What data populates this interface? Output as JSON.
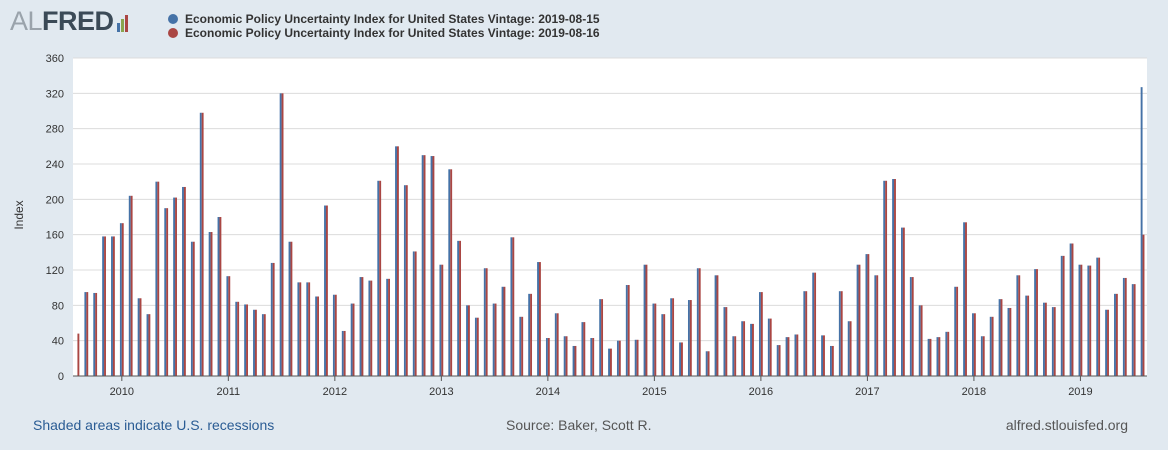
{
  "header": {
    "logo_prefix": "AL",
    "logo_main": "FRED",
    "logo_colors": [
      "#4572a7",
      "#89a54e",
      "#aa4643"
    ]
  },
  "legend": [
    {
      "label": "Economic Policy Uncertainty Index for United States Vintage: 2019-08-15",
      "color": "#4572a7"
    },
    {
      "label": "Economic Policy Uncertainty Index for United States Vintage: 2019-08-16",
      "color": "#aa4643"
    }
  ],
  "footer": {
    "recessions": "Shaded areas indicate U.S. recessions",
    "source": "Source: Baker, Scott R.",
    "site": "alfred.stlouisfed.org"
  },
  "chart_data": {
    "type": "bar",
    "ylabel": "Index",
    "ylim": [
      0,
      360
    ],
    "yticks": [
      0,
      40,
      80,
      120,
      160,
      200,
      240,
      280,
      320,
      360
    ],
    "grid": true,
    "legend_position": "top",
    "year_labels": [
      "2010",
      "2011",
      "2012",
      "2013",
      "2014",
      "2015",
      "2016",
      "2017",
      "2018",
      "2019"
    ],
    "start": "2009-08",
    "end": "2019-08",
    "categories": [
      "2009-08",
      "2009-09",
      "2009-10",
      "2009-11",
      "2009-12",
      "2010-01",
      "2010-02",
      "2010-03",
      "2010-04",
      "2010-05",
      "2010-06",
      "2010-07",
      "2010-08",
      "2010-09",
      "2010-10",
      "2010-11",
      "2010-12",
      "2011-01",
      "2011-02",
      "2011-03",
      "2011-04",
      "2011-05",
      "2011-06",
      "2011-07",
      "2011-08",
      "2011-09",
      "2011-10",
      "2011-11",
      "2011-12",
      "2012-01",
      "2012-02",
      "2012-03",
      "2012-04",
      "2012-05",
      "2012-06",
      "2012-07",
      "2012-08",
      "2012-09",
      "2012-10",
      "2012-11",
      "2012-12",
      "2013-01",
      "2013-02",
      "2013-03",
      "2013-04",
      "2013-05",
      "2013-06",
      "2013-07",
      "2013-08",
      "2013-09",
      "2013-10",
      "2013-11",
      "2013-12",
      "2014-01",
      "2014-02",
      "2014-03",
      "2014-04",
      "2014-05",
      "2014-06",
      "2014-07",
      "2014-08",
      "2014-09",
      "2014-10",
      "2014-11",
      "2014-12",
      "2015-01",
      "2015-02",
      "2015-03",
      "2015-04",
      "2015-05",
      "2015-06",
      "2015-07",
      "2015-08",
      "2015-09",
      "2015-10",
      "2015-11",
      "2015-12",
      "2016-01",
      "2016-02",
      "2016-03",
      "2016-04",
      "2016-05",
      "2016-06",
      "2016-07",
      "2016-08",
      "2016-09",
      "2016-10",
      "2016-11",
      "2016-12",
      "2017-01",
      "2017-02",
      "2017-03",
      "2017-04",
      "2017-05",
      "2017-06",
      "2017-07",
      "2017-08",
      "2017-09",
      "2017-10",
      "2017-11",
      "2017-12",
      "2018-01",
      "2018-02",
      "2018-03",
      "2018-04",
      "2018-05",
      "2018-06",
      "2018-07",
      "2018-08",
      "2018-09",
      "2018-10",
      "2018-11",
      "2018-12",
      "2019-01",
      "2019-02",
      "2019-03",
      "2019-04",
      "2019-05",
      "2019-06",
      "2019-07",
      "2019-08"
    ],
    "series": [
      {
        "name": "Economic Policy Uncertainty Index for United States Vintage: 2019-08-15",
        "color": "#4572a7",
        "values": [
          null,
          95,
          94,
          158,
          158,
          173,
          204,
          88,
          70,
          220,
          190,
          202,
          214,
          152,
          298,
          163,
          180,
          113,
          84,
          81,
          75,
          70,
          128,
          320,
          152,
          106,
          106,
          90,
          193,
          92,
          51,
          82,
          112,
          108,
          221,
          110,
          260,
          216,
          141,
          250,
          249,
          126,
          234,
          153,
          80,
          66,
          122,
          82,
          101,
          157,
          67,
          93,
          129,
          43,
          71,
          45,
          34,
          61,
          43,
          87,
          31,
          40,
          103,
          41,
          126,
          82,
          70,
          88,
          38,
          86,
          122,
          28,
          114,
          78,
          45,
          62,
          59,
          95,
          65,
          35,
          44,
          47,
          96,
          117,
          46,
          34,
          96,
          62,
          126,
          138,
          114,
          221,
          223,
          168,
          112,
          80,
          42,
          44,
          50,
          101,
          174,
          71,
          45,
          67,
          87,
          77,
          114,
          91,
          121,
          83,
          78,
          136,
          150,
          126,
          125,
          134,
          75,
          93,
          111,
          104,
          327
        ]
      },
      {
        "name": "Economic Policy Uncertainty Index for United States Vintage: 2019-08-16",
        "color": "#aa4643",
        "values": [
          48,
          95,
          94,
          158,
          158,
          173,
          204,
          88,
          70,
          220,
          190,
          202,
          214,
          152,
          298,
          163,
          180,
          113,
          84,
          81,
          75,
          70,
          128,
          320,
          152,
          106,
          106,
          90,
          193,
          92,
          51,
          82,
          112,
          108,
          221,
          110,
          260,
          216,
          141,
          250,
          249,
          126,
          234,
          153,
          80,
          66,
          122,
          82,
          101,
          157,
          67,
          93,
          129,
          43,
          71,
          45,
          34,
          61,
          43,
          87,
          31,
          40,
          103,
          41,
          126,
          82,
          70,
          88,
          38,
          86,
          122,
          28,
          114,
          78,
          45,
          62,
          59,
          95,
          65,
          35,
          44,
          47,
          96,
          117,
          46,
          34,
          96,
          62,
          126,
          138,
          114,
          221,
          223,
          168,
          112,
          80,
          42,
          44,
          50,
          101,
          174,
          71,
          45,
          67,
          87,
          77,
          114,
          91,
          121,
          83,
          78,
          136,
          150,
          126,
          125,
          134,
          75,
          93,
          111,
          104,
          160
        ]
      }
    ]
  }
}
